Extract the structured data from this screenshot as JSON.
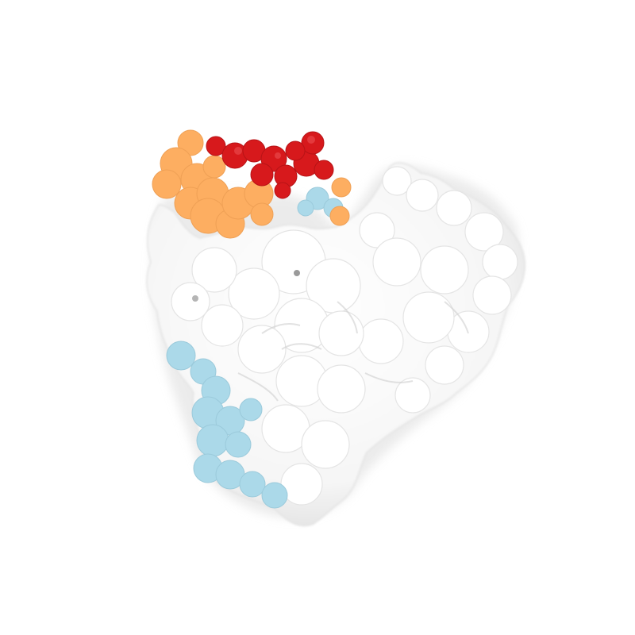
{
  "image": {
    "subject": "protein-surface-rendering",
    "background_color": "#ffffff"
  },
  "surface": {
    "base_color": "#ffffff",
    "shadow_color": "#d9d9d9",
    "regions": [
      {
        "id": "red-region",
        "color": "#d7191c"
      },
      {
        "id": "orange-region",
        "color": "#fdae61"
      },
      {
        "id": "lightblue-region",
        "color": "#abd9e9"
      }
    ]
  }
}
